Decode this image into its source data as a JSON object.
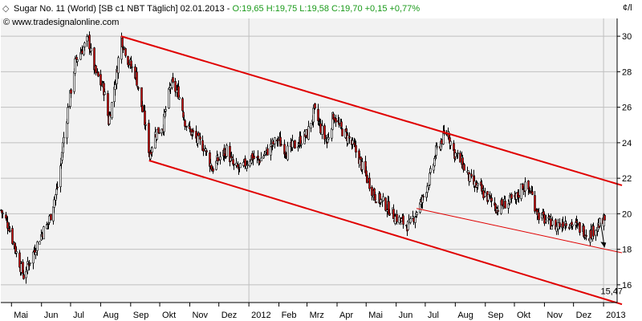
{
  "header": {
    "instrument": "Sugar No. 11 (World) [SB c1 NBT  Täglich] 02.01.2013 - ",
    "ohlc": "O:19,65 H:19,75 L:19,58 C:19,70 +0,15 +0,77%",
    "source": "© www.tradesignalonline.com",
    "unit": "¢/l"
  },
  "colors": {
    "background": "#f2f2f2",
    "candle": "#000000",
    "candle_body": "#d00000",
    "trendline": "#e00000",
    "header_ohlc": "#1a9a1a",
    "grid": "#bfbfbf"
  },
  "chart_data": {
    "type": "candlestick",
    "title": "Sugar No. 11 (World) [SB c1 NBT  Täglich] 02.01.2013",
    "ylabel": "¢/l",
    "ylim": [
      15,
      31
    ],
    "y_ticks": [
      16,
      18,
      20,
      22,
      24,
      26,
      28,
      30
    ],
    "x_labels": [
      "Mai",
      "Jun",
      "Jul",
      "Aug",
      "Sep",
      "Okt",
      "Nov",
      "Dez",
      "2012",
      "Feb",
      "Mrz",
      "Apr",
      "Mai",
      "Jun",
      "Jul",
      "Aug",
      "Sep",
      "Okt",
      "Nov",
      "Dez",
      "2013"
    ],
    "x_range": [
      "2011-04-20",
      "2013-01-15"
    ],
    "price_path": [
      [
        "2011-04-20",
        20.2
      ],
      [
        "2011-04-28",
        19.3
      ],
      [
        "2011-05-06",
        17.8
      ],
      [
        "2011-05-13",
        16.5
      ],
      [
        "2011-05-20",
        17.4
      ],
      [
        "2011-05-31",
        18.8
      ],
      [
        "2011-06-08",
        19.5
      ],
      [
        "2011-06-17",
        21.5
      ],
      [
        "2011-06-27",
        25.5
      ],
      [
        "2011-07-05",
        28.5
      ],
      [
        "2011-07-12",
        29.2
      ],
      [
        "2011-07-19",
        29.8
      ],
      [
        "2011-07-26",
        28.0
      ],
      [
        "2011-08-04",
        27.0
      ],
      [
        "2011-08-09",
        25.2
      ],
      [
        "2011-08-16",
        27.5
      ],
      [
        "2011-08-22",
        29.9
      ],
      [
        "2011-08-30",
        28.5
      ],
      [
        "2011-09-06",
        27.8
      ],
      [
        "2011-09-14",
        25.5
      ],
      [
        "2011-09-20",
        23.3
      ],
      [
        "2011-09-26",
        24.5
      ],
      [
        "2011-10-04",
        25.0
      ],
      [
        "2011-10-12",
        27.3
      ],
      [
        "2011-10-20",
        26.8
      ],
      [
        "2011-10-28",
        25.0
      ],
      [
        "2011-11-07",
        24.2
      ],
      [
        "2011-11-15",
        23.8
      ],
      [
        "2011-11-24",
        22.5
      ],
      [
        "2011-12-02",
        23.2
      ],
      [
        "2011-12-09",
        23.6
      ],
      [
        "2011-12-16",
        22.6
      ],
      [
        "2011-12-23",
        22.5
      ],
      [
        "2012-01-03",
        23.2
      ],
      [
        "2012-01-11",
        23.0
      ],
      [
        "2012-01-19",
        23.5
      ],
      [
        "2012-01-30",
        24.2
      ],
      [
        "2012-02-09",
        23.5
      ],
      [
        "2012-02-20",
        24.0
      ],
      [
        "2012-03-01",
        24.5
      ],
      [
        "2012-03-08",
        25.8
      ],
      [
        "2012-03-15",
        24.8
      ],
      [
        "2012-03-21",
        24.0
      ],
      [
        "2012-03-28",
        25.6
      ],
      [
        "2012-04-04",
        24.8
      ],
      [
        "2012-04-12",
        24.3
      ],
      [
        "2012-04-20",
        23.5
      ],
      [
        "2012-04-30",
        22.2
      ],
      [
        "2012-05-10",
        21.0
      ],
      [
        "2012-05-21",
        20.5
      ],
      [
        "2012-05-31",
        19.8
      ],
      [
        "2012-06-08",
        19.5
      ],
      [
        "2012-06-14",
        19.3
      ],
      [
        "2012-06-22",
        20.2
      ],
      [
        "2012-06-28",
        20.8
      ],
      [
        "2012-07-05",
        22.0
      ],
      [
        "2012-07-12",
        23.5
      ],
      [
        "2012-07-19",
        24.3
      ],
      [
        "2012-07-24",
        24.6
      ],
      [
        "2012-07-30",
        23.5
      ],
      [
        "2012-08-08",
        22.8
      ],
      [
        "2012-08-17",
        21.8
      ],
      [
        "2012-08-27",
        21.3
      ],
      [
        "2012-09-05",
        20.8
      ],
      [
        "2012-09-13",
        20.3
      ],
      [
        "2012-09-21",
        20.6
      ],
      [
        "2012-10-02",
        20.8
      ],
      [
        "2012-10-09",
        21.6
      ],
      [
        "2012-10-17",
        21.3
      ],
      [
        "2012-10-25",
        20.0
      ],
      [
        "2012-11-05",
        19.5
      ],
      [
        "2012-11-13",
        19.3
      ],
      [
        "2012-11-22",
        19.6
      ],
      [
        "2012-11-30",
        19.4
      ],
      [
        "2012-12-10",
        19.1
      ],
      [
        "2012-12-17",
        18.8
      ],
      [
        "2012-12-24",
        19.3
      ],
      [
        "2012-12-31",
        19.5
      ],
      [
        "2013-01-02",
        19.7
      ]
    ],
    "trendlines": [
      {
        "name": "channel-upper",
        "from": [
          "2011-08-22",
          30.0
        ],
        "to": [
          "2013-01-20",
          21.6
        ],
        "width": 2
      },
      {
        "name": "channel-lower",
        "from": [
          "2011-09-20",
          23.0
        ],
        "to": [
          "2013-01-20",
          14.9
        ],
        "width": 2
      },
      {
        "name": "support-line",
        "from": [
          "2012-06-22",
          20.3
        ],
        "to": [
          "2013-01-20",
          17.8
        ],
        "width": 1
      }
    ],
    "arrow": {
      "from": [
        "2012-12-29",
        19.5
      ],
      "to": [
        "2013-01-02",
        18.1
      ]
    },
    "annotation": {
      "text": "15,47",
      "at": [
        "2012-12-29",
        15.47
      ]
    }
  }
}
